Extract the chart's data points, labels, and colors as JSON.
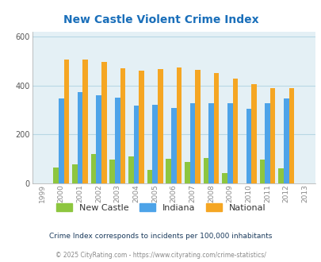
{
  "title": "New Castle Violent Crime Index",
  "years": [
    1999,
    2000,
    2001,
    2002,
    2003,
    2004,
    2005,
    2006,
    2007,
    2008,
    2009,
    2010,
    2011,
    2012,
    2013
  ],
  "new_castle": [
    null,
    65,
    78,
    120,
    97,
    110,
    55,
    100,
    88,
    105,
    42,
    null,
    98,
    62,
    null
  ],
  "indiana": [
    null,
    348,
    372,
    360,
    350,
    318,
    320,
    308,
    328,
    328,
    328,
    303,
    328,
    348,
    null
  ],
  "national": [
    null,
    506,
    506,
    494,
    469,
    460,
    468,
    474,
    463,
    451,
    428,
    404,
    388,
    388,
    null
  ],
  "bar_width": 0.28,
  "ylim": [
    0,
    620
  ],
  "yticks": [
    0,
    200,
    400,
    600
  ],
  "bg_color": "#e4f0f5",
  "new_castle_color": "#8dc63f",
  "indiana_color": "#4da3e8",
  "national_color": "#f5a623",
  "title_color": "#1a6fba",
  "grid_color": "#b8d8e4",
  "footer_text1": "Crime Index corresponds to incidents per 100,000 inhabitants",
  "footer_text2": "© 2025 CityRating.com - https://www.cityrating.com/crime-statistics/",
  "legend_labels": [
    "New Castle",
    "Indiana",
    "National"
  ]
}
